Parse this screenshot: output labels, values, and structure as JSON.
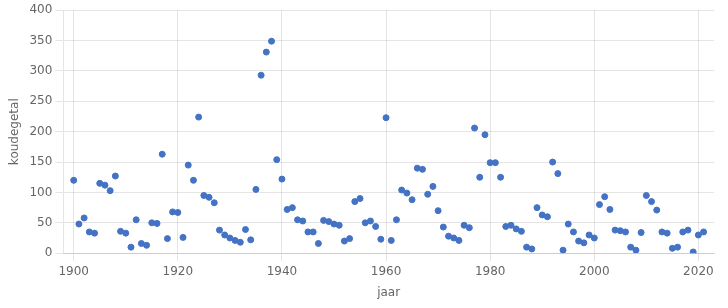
{
  "chart_data": {
    "type": "scatter",
    "xlabel": "jaar",
    "ylabel": "koudegetal",
    "color": "#4472C4",
    "xlim": [
      1898,
      2023
    ],
    "xticks": [
      1900,
      1920,
      1940,
      1960,
      1980,
      2000,
      2020
    ],
    "ylim": [
      0,
      400
    ],
    "yticks": [
      0,
      50,
      100,
      150,
      200,
      250,
      300,
      350,
      400
    ],
    "grid": true,
    "x": [
      1900,
      1901,
      1902,
      1903,
      1904,
      1905,
      1906,
      1907,
      1908,
      1909,
      1910,
      1911,
      1912,
      1913,
      1914,
      1915,
      1916,
      1917,
      1918,
      1919,
      1920,
      1921,
      1922,
      1923,
      1924,
      1925,
      1926,
      1927,
      1928,
      1929,
      1930,
      1931,
      1932,
      1933,
      1934,
      1935,
      1936,
      1937,
      1938,
      1939,
      1940,
      1941,
      1942,
      1943,
      1944,
      1945,
      1946,
      1947,
      1948,
      1949,
      1950,
      1951,
      1952,
      1953,
      1954,
      1955,
      1956,
      1957,
      1958,
      1959,
      1960,
      1961,
      1962,
      1963,
      1964,
      1965,
      1966,
      1967,
      1968,
      1969,
      1970,
      1971,
      1972,
      1973,
      1974,
      1975,
      1976,
      1977,
      1978,
      1979,
      1980,
      1981,
      1982,
      1983,
      1984,
      1985,
      1986,
      1987,
      1988,
      1989,
      1990,
      1991,
      1992,
      1993,
      1994,
      1995,
      1996,
      1997,
      1998,
      1999,
      2000,
      2001,
      2002,
      2003,
      2004,
      2005,
      2006,
      2007,
      2008,
      2009,
      2010,
      2011,
      2012,
      2013,
      2014,
      2015,
      2016,
      2017,
      2018,
      2019,
      2020,
      2021
    ],
    "values": [
      120,
      48,
      58,
      35,
      33,
      115,
      112,
      103,
      127,
      36,
      33,
      10,
      55,
      16,
      13,
      50,
      49,
      163,
      24,
      68,
      67,
      26,
      145,
      120,
      224,
      95,
      92,
      83,
      38,
      30,
      25,
      21,
      18,
      39,
      22,
      105,
      293,
      331,
      349,
      154,
      122,
      72,
      75,
      55,
      53,
      35,
      35,
      16,
      54,
      52,
      48,
      46,
      20,
      24,
      85,
      90,
      50,
      53,
      44,
      23,
      223,
      21,
      55,
      104,
      99,
      88,
      140,
      138,
      97,
      110,
      70,
      43,
      28,
      25,
      21,
      46,
      42,
      206,
      125,
      195,
      149,
      149,
      125,
      44,
      46,
      40,
      36,
      10,
      7,
      75,
      63,
      60,
      150,
      131,
      5,
      48,
      35,
      20,
      17,
      30,
      25,
      80,
      93,
      72,
      38,
      37,
      35,
      10,
      5,
      34,
      95,
      85,
      71,
      35,
      33,
      8,
      10,
      35,
      38,
      2,
      30,
      35
    ]
  }
}
